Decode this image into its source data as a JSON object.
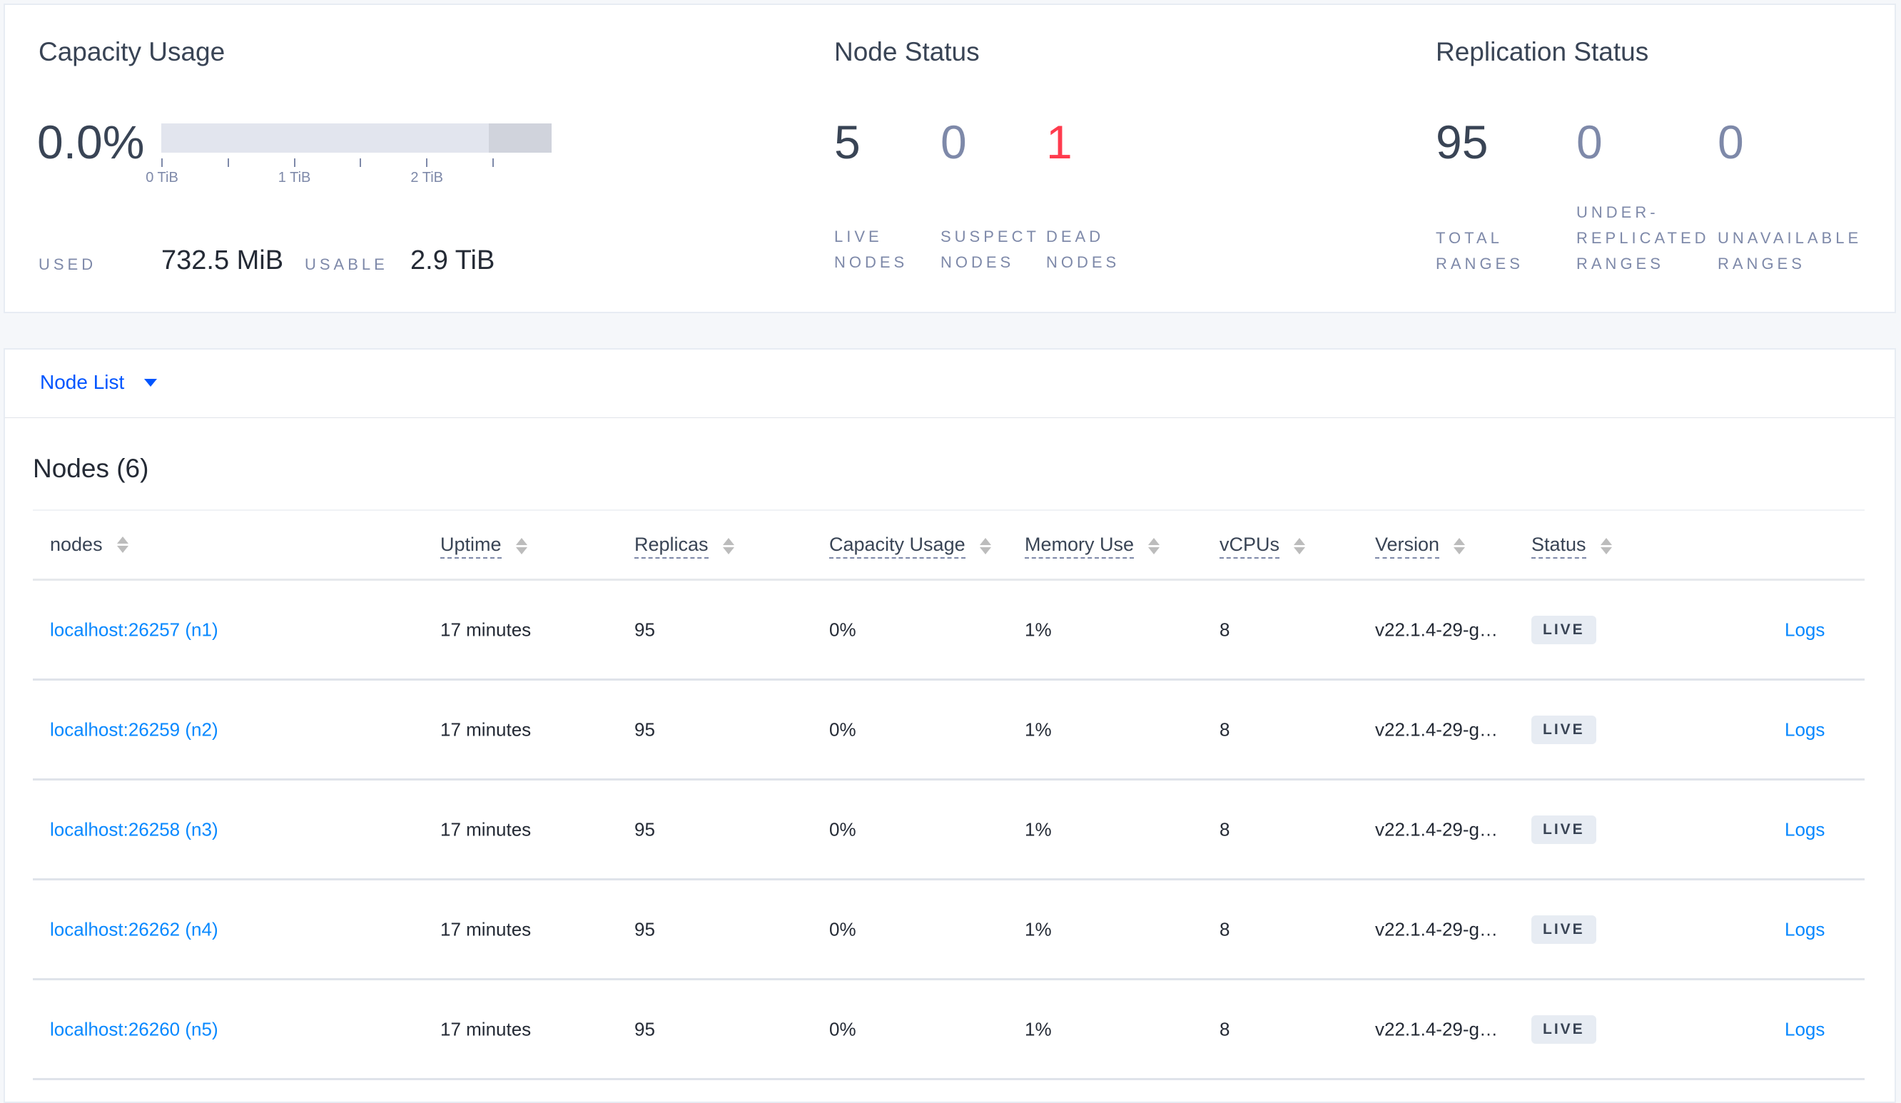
{
  "capacity": {
    "title": "Capacity Usage",
    "percent": "0.0%",
    "used_fraction": 0.0,
    "usable_fraction_of_scale": 0.84,
    "ticks": [
      "0 TiB",
      "1 TiB",
      "2 TiB"
    ],
    "used_label": "USED",
    "used_value": "732.5 MiB",
    "usable_label": "USABLE",
    "usable_value": "2.9 TiB"
  },
  "node_status": {
    "title": "Node Status",
    "items": [
      {
        "value": "5",
        "label1": "LIVE",
        "label2": "NODES",
        "color": "#394455"
      },
      {
        "value": "0",
        "label1": "SUSPECT",
        "label2": "NODES",
        "color": "#7e89a9"
      },
      {
        "value": "1",
        "label1": "DEAD",
        "label2": "NODES",
        "color": "#ff3b4e"
      }
    ]
  },
  "replication": {
    "title": "Replication Status",
    "items": [
      {
        "value": "95",
        "label0": "",
        "label1": "TOTAL",
        "label2": "RANGES",
        "color": "#394455"
      },
      {
        "value": "0",
        "label0": "UNDER-",
        "label1": "REPLICATED",
        "label2": "RANGES",
        "color": "#7e89a9"
      },
      {
        "value": "0",
        "label0": "",
        "label1": "UNAVAILABLE",
        "label2": "RANGES",
        "color": "#7e89a9"
      }
    ]
  },
  "nodelist": {
    "dropdown": "Node List",
    "dropdown_icon": "caret-down-icon"
  },
  "table": {
    "title": "Nodes (6)",
    "columns": [
      "nodes",
      "Uptime",
      "Replicas",
      "Capacity Usage",
      "Memory Use",
      "vCPUs",
      "Version",
      "Status"
    ],
    "rows": [
      {
        "node": "localhost:26257 (n1)",
        "uptime": "17 minutes",
        "replicas": "95",
        "capacity": "0%",
        "memory": "1%",
        "vcpus": "8",
        "version": "v22.1.4-29-g…",
        "status": "LIVE",
        "logs": "Logs"
      },
      {
        "node": "localhost:26259 (n2)",
        "uptime": "17 minutes",
        "replicas": "95",
        "capacity": "0%",
        "memory": "1%",
        "vcpus": "8",
        "version": "v22.1.4-29-g…",
        "status": "LIVE",
        "logs": "Logs"
      },
      {
        "node": "localhost:26258 (n3)",
        "uptime": "17 minutes",
        "replicas": "95",
        "capacity": "0%",
        "memory": "1%",
        "vcpus": "8",
        "version": "v22.1.4-29-g…",
        "status": "LIVE",
        "logs": "Logs"
      },
      {
        "node": "localhost:26262 (n4)",
        "uptime": "17 minutes",
        "replicas": "95",
        "capacity": "0%",
        "memory": "1%",
        "vcpus": "8",
        "version": "v22.1.4-29-g…",
        "status": "LIVE",
        "logs": "Logs"
      },
      {
        "node": "localhost:26260 (n5)",
        "uptime": "17 minutes",
        "replicas": "95",
        "capacity": "0%",
        "memory": "1%",
        "vcpus": "8",
        "version": "v22.1.4-29-g…",
        "status": "LIVE",
        "logs": "Logs"
      }
    ]
  }
}
